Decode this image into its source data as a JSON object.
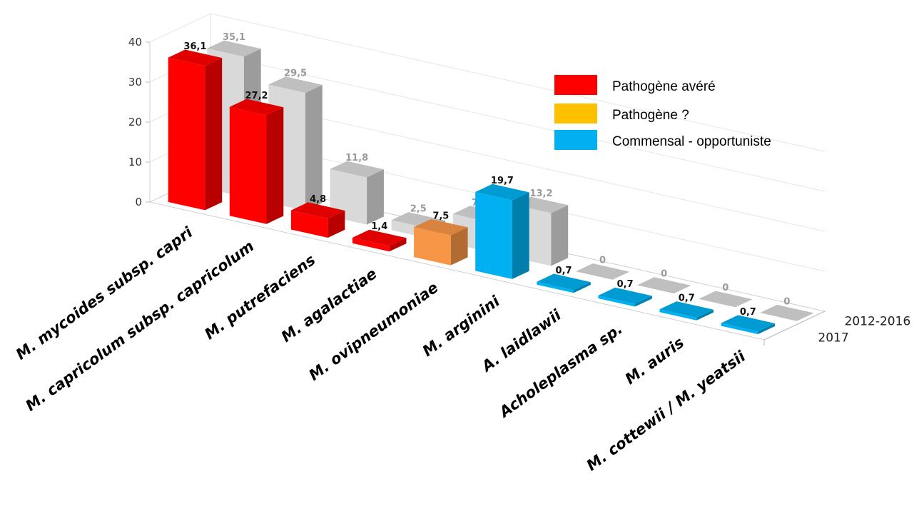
{
  "chart_data": {
    "type": "bar",
    "categories": [
      "M. mycoides subsp. capri",
      "M. capricolum subsp. capricolum",
      "M. putrefaciens",
      "M. agalactiae",
      "M. ovipneumoniae",
      "M. arginini",
      "A. laidlawii",
      "Acholeplasma sp.",
      "M. auris",
      "M. cottewii / M. yeatsii"
    ],
    "series": [
      {
        "name": "2017",
        "values": [
          36.1,
          27.2,
          4.8,
          1.4,
          7.5,
          19.7,
          0.7,
          0.7,
          0.7,
          0.7
        ],
        "labels": [
          "36,1",
          "27,2",
          "4,8",
          "1,4",
          "7,5",
          "19,7",
          "0,7",
          "0,7",
          "0,7",
          "0,7"
        ],
        "category_colors": [
          "#ff0000",
          "#ff0000",
          "#ff0000",
          "#ff0000",
          "#f79646",
          "#00b0f0",
          "#00b0f0",
          "#00b0f0",
          "#00b0f0",
          "#00b0f0"
        ]
      },
      {
        "name": "2012-2016",
        "values": [
          35.1,
          29.5,
          11.8,
          2.5,
          7.5,
          13.2,
          0,
          0,
          0,
          0
        ],
        "labels": [
          "35,1",
          "29,5",
          "11,8",
          "2,5",
          "7,5",
          "13,2",
          "0",
          "0",
          "0",
          "0"
        ],
        "color": "#d9d9d9"
      }
    ],
    "y_ticks": [
      "0",
      "10",
      "20",
      "30",
      "40"
    ],
    "ylim": [
      0,
      40
    ],
    "legend": [
      {
        "label": "Pathogène avéré",
        "color": "#ff0000"
      },
      {
        "label": "Pathogène ?",
        "color": "#ffc000"
      },
      {
        "label": "Commensal - opportuniste",
        "color": "#00b0f0"
      }
    ],
    "legend_position": "top-right",
    "grid": true,
    "style": "3d"
  }
}
